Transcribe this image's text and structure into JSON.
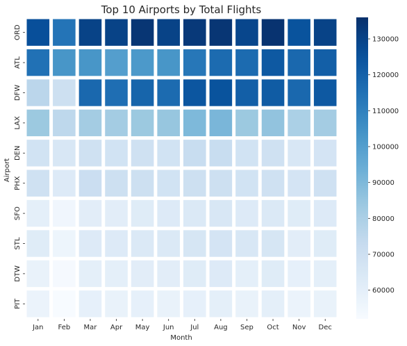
{
  "chart_data": {
    "type": "heatmap",
    "title": "Top 10 Airports by Total Flights",
    "xlabel": "Month",
    "ylabel": "Airport",
    "x_categories": [
      "Jan",
      "Feb",
      "Mar",
      "Apr",
      "May",
      "Jun",
      "Jul",
      "Aug",
      "Sep",
      "Oct",
      "Nov",
      "Dec"
    ],
    "y_categories": [
      "ORD",
      "ATL",
      "DFW",
      "LAX",
      "DEN",
      "PHX",
      "SFO",
      "STL",
      "DTW",
      "PIT"
    ],
    "values": [
      [
        126000,
        114000,
        130000,
        130000,
        134000,
        130000,
        133000,
        134000,
        129000,
        135000,
        125000,
        130000
      ],
      [
        115000,
        103000,
        103000,
        100000,
        102000,
        103000,
        113000,
        117000,
        117000,
        123000,
        118000,
        121000
      ],
      [
        76000,
        70000,
        118000,
        116000,
        119000,
        117000,
        124000,
        125000,
        121000,
        122000,
        118000,
        123000
      ],
      [
        84000,
        75000,
        82000,
        82000,
        84000,
        85000,
        90000,
        91000,
        84000,
        86000,
        80000,
        82000
      ],
      [
        68000,
        65000,
        69000,
        68000,
        69000,
        68000,
        72000,
        72000,
        68000,
        69000,
        65000,
        67000
      ],
      [
        69000,
        63000,
        71000,
        70000,
        70000,
        68000,
        70000,
        70000,
        68000,
        69000,
        67000,
        69000
      ],
      [
        60000,
        55000,
        61000,
        61000,
        62000,
        63000,
        64000,
        65000,
        63000,
        64000,
        62000,
        63000
      ],
      [
        62000,
        56000,
        63000,
        63000,
        64000,
        64000,
        66000,
        67000,
        65000,
        66000,
        61000,
        62000
      ],
      [
        58000,
        53000,
        60000,
        60000,
        61000,
        61000,
        62000,
        63000,
        60000,
        62000,
        59000,
        60000
      ],
      [
        57000,
        52000,
        59000,
        58000,
        59000,
        58000,
        59000,
        60000,
        58000,
        60000,
        57000,
        58000
      ]
    ],
    "colorbar": {
      "min": 52000,
      "max": 136000,
      "ticks": [
        60000,
        70000,
        80000,
        90000,
        100000,
        110000,
        120000,
        130000
      ],
      "tick_labels": [
        "60000",
        "70000",
        "80000",
        "90000",
        "100000",
        "110000",
        "120000",
        "130000"
      ],
      "colormap": "Blues"
    },
    "grid": false,
    "legend": "none"
  }
}
